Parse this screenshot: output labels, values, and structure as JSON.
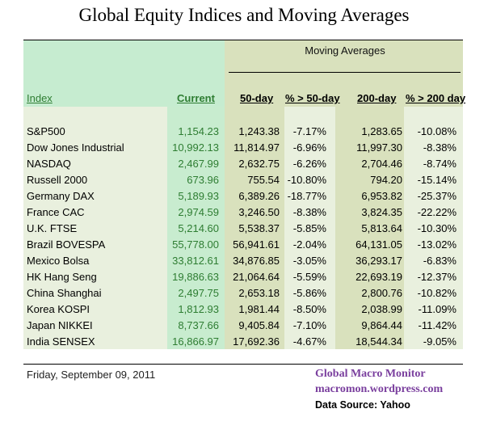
{
  "title": "Global Equity Indices and Moving Averages",
  "group_header": "Moving Averages",
  "columns": {
    "index": "Index",
    "current": "Current",
    "ma50": "50-day",
    "pct50": "% > 50-day",
    "ma200": "200-day",
    "pct200": "% > 200 day"
  },
  "rows": [
    {
      "index": "S&P500",
      "current": "1,154.23",
      "ma50": "1,243.38",
      "pct50": "-7.17%",
      "ma200": "1,283.65",
      "pct200": "-10.08%"
    },
    {
      "index": "Dow Jones Industrial",
      "current": "10,992.13",
      "ma50": "11,814.97",
      "pct50": "-6.96%",
      "ma200": "11,997.30",
      "pct200": "-8.38%"
    },
    {
      "index": "NASDAQ",
      "current": "2,467.99",
      "ma50": "2,632.75",
      "pct50": "-6.26%",
      "ma200": "2,704.46",
      "pct200": "-8.74%"
    },
    {
      "index": "Russell 2000",
      "current": "673.96",
      "ma50": "755.54",
      "pct50": "-10.80%",
      "ma200": "794.20",
      "pct200": "-15.14%"
    },
    {
      "index": "Germany DAX",
      "current": "5,189.93",
      "ma50": "6,389.26",
      "pct50": "-18.77%",
      "ma200": "6,953.82",
      "pct200": "-25.37%"
    },
    {
      "index": "France CAC",
      "current": "2,974.59",
      "ma50": "3,246.50",
      "pct50": "-8.38%",
      "ma200": "3,824.35",
      "pct200": "-22.22%"
    },
    {
      "index": "U.K. FTSE",
      "current": "5,214.60",
      "ma50": "5,538.37",
      "pct50": "-5.85%",
      "ma200": "5,813.64",
      "pct200": "-10.30%"
    },
    {
      "index": "Brazil BOVESPA",
      "current": "55,778.00",
      "ma50": "56,941.61",
      "pct50": "-2.04%",
      "ma200": "64,131.05",
      "pct200": "-13.02%"
    },
    {
      "index": "Mexico Bolsa",
      "current": "33,812.61",
      "ma50": "34,876.85",
      "pct50": "-3.05%",
      "ma200": "36,293.17",
      "pct200": "-6.83%"
    },
    {
      "index": "HK  Hang Seng",
      "current": "19,886.63",
      "ma50": "21,064.64",
      "pct50": "-5.59%",
      "ma200": "22,693.19",
      "pct200": "-12.37%"
    },
    {
      "index": "China Shanghai",
      "current": "2,497.75",
      "ma50": "2,653.18",
      "pct50": "-5.86%",
      "ma200": "2,800.76",
      "pct200": "-10.82%"
    },
    {
      "index": "Korea KOSPI",
      "current": "1,812.93",
      "ma50": "1,981.44",
      "pct50": "-8.50%",
      "ma200": "2,038.99",
      "pct200": "-11.09%"
    },
    {
      "index": "Japan NIKKEI",
      "current": "8,737.66",
      "ma50": "9,405.84",
      "pct50": "-7.10%",
      "ma200": "9,864.44",
      "pct200": "-11.42%"
    },
    {
      "index": "India SENSEX",
      "current": "16,866.97",
      "ma50": "17,692.36",
      "pct50": "-4.67%",
      "ma200": "18,544.34",
      "pct200": "-9.05%"
    }
  ],
  "footer": {
    "date": "Friday, September 09, 2011",
    "brand": "Global Macro Monitor",
    "site": "macromon.wordpress.com",
    "source": "Data Source: Yahoo"
  },
  "colors": {
    "green_header": "#c6ecd0",
    "current_col": "#c8eccf",
    "olive": "#d9e1bd",
    "light": "#e9f0de",
    "brand": "#7a3f9e"
  }
}
